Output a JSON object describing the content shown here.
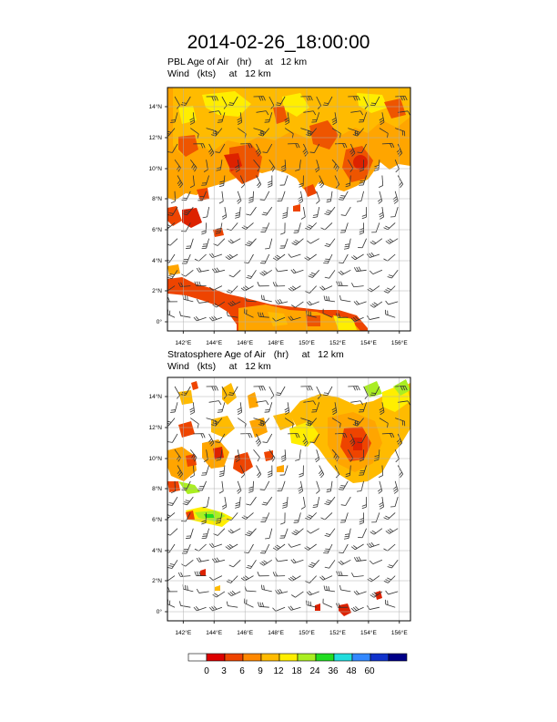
{
  "title": "2014-02-26_18:00:00",
  "panels": [
    {
      "id": "pbl",
      "title_line1": "PBL Age of Air   (hr)     at   12 km",
      "title_line2": "Wind   (kts)     at   12 km"
    },
    {
      "id": "strat",
      "title_line1": "Stratosphere Age of Air   (hr)     at   12 km",
      "title_line2": "Wind   (kts)     at   12 km"
    }
  ],
  "lat_ticks": [
    "0°",
    "2°N",
    "4°N",
    "6°N",
    "8°N",
    "10°N",
    "12°N",
    "14°N"
  ],
  "lon_ticks": [
    "142°E",
    "144°E",
    "146°E",
    "148°E",
    "150°E",
    "152°E",
    "154°E",
    "156°E"
  ],
  "colorbar": {
    "labels": [
      "0",
      "3",
      "6",
      "9",
      "12",
      "18",
      "24",
      "36",
      "48",
      "60"
    ],
    "colors": [
      "#ffffff",
      "#dd0000",
      "#ee4400",
      "#ff8800",
      "#ffbb00",
      "#ffee00",
      "#aaee22",
      "#22dd22",
      "#22dddd",
      "#3388ff",
      "#1133cc",
      "#000088"
    ]
  }
}
